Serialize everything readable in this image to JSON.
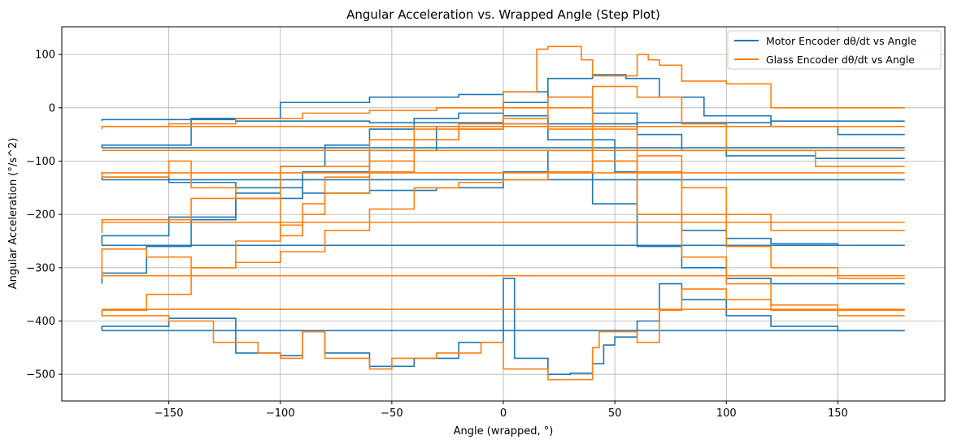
{
  "chart_data": {
    "type": "line",
    "title": "Angular Acceleration vs. Wrapped Angle (Step Plot)",
    "xlabel": "Angle (wrapped, °)",
    "ylabel": "Angular Acceleration (°/s^2)",
    "xlim": [
      -198,
      198
    ],
    "ylim": [
      -550,
      152
    ],
    "xticks": [
      -150,
      -100,
      -50,
      0,
      50,
      100,
      150
    ],
    "yticks": [
      100,
      0,
      -100,
      -200,
      -300,
      -400,
      -500
    ],
    "grid": true,
    "legend_position": "top-right",
    "series": [
      {
        "name": "Motor Encoder dθ/dt vs Angle",
        "color": "#1f77b4",
        "segments": [
          {
            "x": [
              -180,
              -150,
              -120,
              -90,
              -60,
              -30,
              0,
              20,
              40,
              55,
              70,
              90,
              120,
              150,
              180
            ],
            "y": [
              -258,
              -240,
              -205,
              -170,
              -120,
              -80,
              -35,
              10,
              55,
              62,
              55,
              20,
              -15,
              -35,
              -50
            ]
          },
          {
            "x": [
              -180,
              -160,
              -140,
              -120,
              -100,
              -80,
              -60,
              -40,
              -20,
              0,
              20,
              40,
              60,
              80,
              100,
              120,
              140,
              160,
              180
            ],
            "y": [
              -330,
              -310,
              -260,
              -210,
              -160,
              -110,
              -70,
              -40,
              -20,
              -10,
              -15,
              -60,
              -180,
              -260,
              -300,
              -320,
              -330,
              -330,
              -330
            ]
          },
          {
            "x": [
              -180,
              -150,
              -120,
              -100,
              -90,
              -80,
              -60,
              -40,
              -20,
              0,
              5,
              20,
              30,
              40,
              45,
              50,
              60,
              70,
              80,
              100,
              120,
              150,
              180
            ],
            "y": [
              -418,
              -410,
              -395,
              -460,
              -465,
              -420,
              -460,
              -485,
              -470,
              -440,
              -320,
              -470,
              -500,
              -498,
              -480,
              -445,
              -430,
              -400,
              -330,
              -360,
              -390,
              -410,
              -418
            ]
          },
          {
            "x": [
              -180,
              -150,
              -120,
              -90,
              -60,
              -30,
              0,
              20,
              40,
              50,
              60,
              80,
              100,
              120,
              150,
              180
            ],
            "y": [
              -135,
              -130,
              -140,
              -150,
              -160,
              -155,
              -150,
              -120,
              -80,
              -60,
              -120,
              -200,
              -230,
              -245,
              -255,
              -258
            ]
          },
          {
            "x": [
              -180,
              -140,
              -100,
              -60,
              -20,
              0,
              20,
              40,
              60,
              80,
              100,
              140,
              180
            ],
            "y": [
              -75,
              -70,
              -20,
              10,
              20,
              25,
              30,
              20,
              -10,
              -50,
              -80,
              -90,
              -95
            ]
          },
          {
            "x": [
              -180,
              -120,
              -60,
              0,
              60,
              120,
              180
            ],
            "y": [
              -25,
              -22,
              -25,
              -28,
              -30,
              -28,
              -25
            ]
          },
          {
            "x": [
              -180,
              180
            ],
            "y": [
              -418,
              -418
            ]
          },
          {
            "x": [
              -180,
              180
            ],
            "y": [
              -258,
              -258
            ]
          },
          {
            "x": [
              -180,
              180
            ],
            "y": [
              -135,
              -135
            ]
          },
          {
            "x": [
              -180,
              180
            ],
            "y": [
              -75,
              -75
            ]
          }
        ]
      },
      {
        "name": "Glass Encoder dθ/dt vs Angle",
        "color": "#ff7f0e",
        "segments": [
          {
            "x": [
              -180,
              -150,
              -120,
              -90,
              -60,
              -30,
              0,
              15,
              20,
              35,
              40,
              60,
              65,
              70,
              80,
              100,
              120,
              150,
              180
            ],
            "y": [
              -40,
              -35,
              -30,
              -20,
              -10,
              -5,
              0,
              30,
              110,
              115,
              90,
              60,
              100,
              90,
              80,
              50,
              45,
              0,
              0
            ]
          },
          {
            "x": [
              -180,
              -150,
              -140,
              -120,
              -100,
              -90,
              -80,
              -60,
              -40,
              -20,
              0,
              20,
              40,
              60,
              80,
              100,
              120,
              150,
              180
            ],
            "y": [
              -120,
              -130,
              -100,
              -150,
              -170,
              -240,
              -200,
              -160,
              -120,
              -40,
              -30,
              0,
              20,
              -40,
              -120,
              -200,
              -260,
              -300,
              -320
            ]
          },
          {
            "x": [
              -180,
              -160,
              -140,
              -120,
              -100,
              -90,
              -80,
              -60,
              -40,
              -20,
              0,
              20,
              40,
              60,
              80,
              100,
              120,
              150,
              180
            ],
            "y": [
              -390,
              -380,
              -350,
              -300,
              -250,
              -220,
              -180,
              -130,
              -100,
              -60,
              -40,
              -30,
              -40,
              -100,
              -200,
              -280,
              -330,
              -370,
              -390
            ]
          },
          {
            "x": [
              -180,
              -150,
              -130,
              -110,
              -100,
              -90,
              -80,
              -60,
              -50,
              -30,
              -10,
              0,
              20,
              40,
              43,
              60,
              70,
              80,
              100,
              120,
              150,
              180
            ],
            "y": [
              -380,
              -390,
              -400,
              -440,
              -460,
              -470,
              -420,
              -470,
              -490,
              -470,
              -460,
              -440,
              -490,
              -510,
              -450,
              -420,
              -440,
              -380,
              -340,
              -360,
              -380,
              -380
            ]
          },
          {
            "x": [
              -180,
              -160,
              -140,
              -120,
              -100,
              -80,
              -60,
              -40,
              -20,
              0,
              20,
              40,
              60,
              80,
              100,
              120,
              140,
              160,
              180
            ],
            "y": [
              -320,
              -265,
              -280,
              -300,
              -290,
              -270,
              -230,
              -190,
              -150,
              -140,
              -135,
              -120,
              -100,
              -90,
              -150,
              -200,
              -230,
              -230,
              -230
            ]
          },
          {
            "x": [
              -180,
              -140,
              -100,
              -60,
              -20,
              0,
              20,
              40,
              60,
              80,
              100,
              140,
              180
            ],
            "y": [
              -235,
              -210,
              -170,
              -110,
              -60,
              -40,
              -20,
              0,
              40,
              20,
              -30,
              -80,
              -110
            ]
          },
          {
            "x": [
              -180,
              180
            ],
            "y": [
              -215,
              -215
            ]
          },
          {
            "x": [
              -180,
              180
            ],
            "y": [
              -122,
              -122
            ]
          },
          {
            "x": [
              -180,
              180
            ],
            "y": [
              -315,
              -315
            ]
          },
          {
            "x": [
              -180,
              180
            ],
            "y": [
              -378,
              -378
            ]
          },
          {
            "x": [
              -180,
              180
            ],
            "y": [
              -35,
              -35
            ]
          },
          {
            "x": [
              -180,
              180
            ],
            "y": [
              -80,
              -80
            ]
          }
        ]
      }
    ]
  }
}
